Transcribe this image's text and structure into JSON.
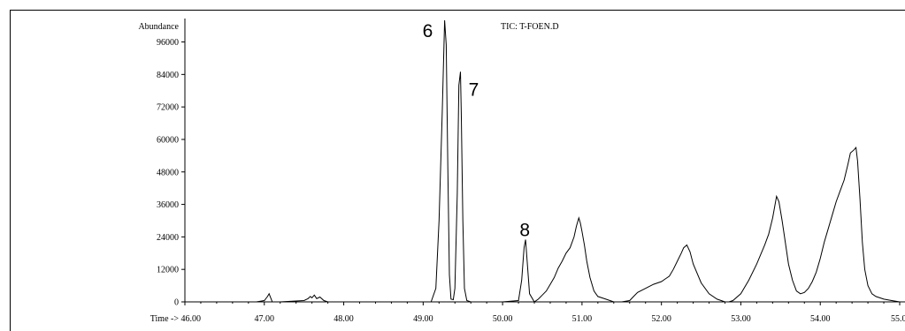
{
  "chart_data": {
    "type": "line",
    "title": "TIC: T-FOEN.D",
    "ylabel": "Abundance",
    "xlabel_prefix": "Time ->",
    "xlim": [
      46.0,
      55.0
    ],
    "ylim": [
      0,
      104000
    ],
    "grid": false,
    "y_ticks": [
      0,
      12000,
      24000,
      36000,
      48000,
      60000,
      72000,
      84000,
      96000
    ],
    "y_tick_labels": [
      "0",
      "12000",
      "24000",
      "36000",
      "48000",
      "60000",
      "72000",
      "84000",
      "96000"
    ],
    "x_ticks": [
      46.0,
      47.0,
      48.0,
      49.0,
      50.0,
      51.0,
      52.0,
      53.0,
      54.0,
      55.0
    ],
    "x_tick_labels": [
      "46.00",
      "47.00",
      "48.00",
      "49.00",
      "50.00",
      "51.00",
      "52.00",
      "53.00",
      "54.00",
      "55.00"
    ],
    "peak_annotations": [
      {
        "label": "6",
        "x": 49.28,
        "y": 103000
      },
      {
        "label": "7",
        "x": 49.48,
        "y": 84000
      },
      {
        "label": "8",
        "x": 50.28,
        "y": 23000
      }
    ],
    "series": [
      {
        "x": [
          46.0,
          46.9,
          47.0,
          47.04,
          47.06,
          47.08,
          47.1,
          47.2,
          47.5,
          47.55,
          47.58,
          47.6,
          47.63,
          47.66,
          47.7,
          47.75,
          47.8,
          48.5,
          49.1,
          49.16,
          49.2,
          49.24,
          49.27,
          49.29,
          49.31,
          49.33,
          49.35,
          49.38,
          49.4,
          49.43,
          49.45,
          49.47,
          49.48,
          49.5,
          49.52,
          49.55,
          49.6,
          50.0,
          50.2,
          50.24,
          50.27,
          50.29,
          50.31,
          50.34,
          50.4,
          50.45,
          50.5,
          50.55,
          50.6,
          50.65,
          50.7,
          50.75,
          50.8,
          50.85,
          50.9,
          50.93,
          50.96,
          50.98,
          51.0,
          51.03,
          51.06,
          51.1,
          51.15,
          51.2,
          51.3,
          51.4,
          51.5,
          51.6,
          51.65,
          51.7,
          51.8,
          51.9,
          52.0,
          52.05,
          52.1,
          52.15,
          52.2,
          52.25,
          52.28,
          52.32,
          52.36,
          52.4,
          52.5,
          52.6,
          52.7,
          52.8,
          52.85,
          52.9,
          53.0,
          53.1,
          53.2,
          53.3,
          53.35,
          53.4,
          53.45,
          53.48,
          53.52,
          53.56,
          53.6,
          53.65,
          53.7,
          53.75,
          53.8,
          53.85,
          53.9,
          53.95,
          54.0,
          54.05,
          54.1,
          54.15,
          54.2,
          54.25,
          54.3,
          54.35,
          54.38,
          54.42,
          54.45,
          54.47,
          54.5,
          54.53,
          54.56,
          54.6,
          54.65,
          54.7,
          54.8,
          54.9,
          55.0
        ],
        "y": [
          0,
          0,
          500,
          2000,
          3000,
          1500,
          0,
          0,
          500,
          1200,
          2000,
          1500,
          2500,
          1200,
          1800,
          500,
          0,
          0,
          0,
          5000,
          30000,
          70000,
          104000,
          95000,
          50000,
          10000,
          1000,
          800,
          5000,
          40000,
          80000,
          85000,
          70000,
          30000,
          5000,
          500,
          0,
          0,
          500,
          8000,
          20000,
          23000,
          15000,
          3000,
          0,
          1000,
          2500,
          4000,
          6500,
          9000,
          12500,
          15000,
          18000,
          20000,
          24000,
          28000,
          31000,
          29000,
          26000,
          21000,
          15000,
          9000,
          4000,
          2000,
          1000,
          0,
          0,
          500,
          2000,
          3500,
          5000,
          6500,
          7500,
          8500,
          9500,
          12000,
          15000,
          18000,
          20000,
          21000,
          18500,
          14000,
          7000,
          3000,
          1000,
          0,
          0,
          500,
          3000,
          8000,
          14000,
          21000,
          25000,
          31000,
          39000,
          37000,
          30000,
          22000,
          14000,
          8000,
          4000,
          3000,
          3500,
          5000,
          7500,
          11000,
          16000,
          22000,
          27000,
          32000,
          37000,
          41000,
          45000,
          51000,
          55000,
          56000,
          57000,
          52000,
          38000,
          22000,
          12000,
          6000,
          3000,
          2000,
          1000,
          500,
          0
        ]
      }
    ]
  }
}
